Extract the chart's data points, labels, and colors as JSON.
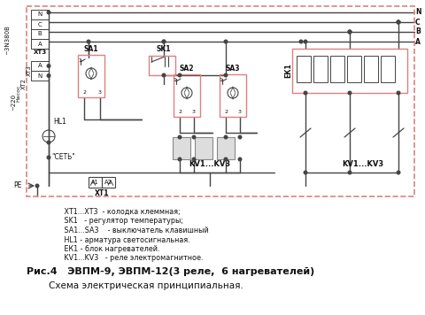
{
  "bg_color": "#ffffff",
  "border_color": "#e8a0a0",
  "line_color": "#444444",
  "red_box_color": "#e08080",
  "text_color": "#111111",
  "title_line1": "Рис.4   ЭВПМ-9, ЭВПМ-12(3 реле,  6 нагревателей)",
  "title_line2": "Схема электрическая принципиальная.",
  "legend_lines": [
    " ХТ1...ХТ3  - колодка клеммная;",
    " SK1   - регулятор температуры;",
    " SA1...SA3    - выключатель клавишный",
    " HL1 - арматура светосигнальная.",
    " ЕК1 - блок нагревателей.",
    " KV1...KV3   - реле электромагнитное."
  ]
}
